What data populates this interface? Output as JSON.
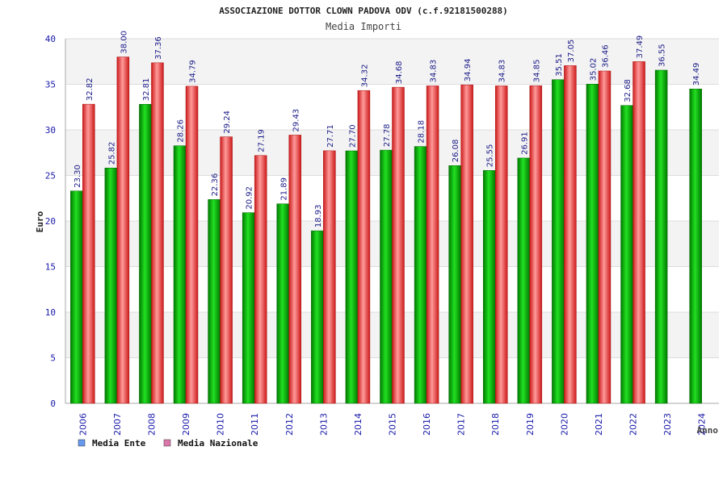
{
  "chart_data": {
    "type": "bar",
    "title": "ASSOCIAZIONE DOTTOR CLOWN PADOVA ODV (c.f.92181500288)",
    "subtitle": "Media Importi",
    "xlabel": "Anno",
    "ylabel": "Euro",
    "ylim": [
      0,
      40
    ],
    "ytick_step": 5,
    "grid": true,
    "legend_position": "bottom-left",
    "categories": [
      "2006",
      "2007",
      "2008",
      "2009",
      "2010",
      "2011",
      "2012",
      "2013",
      "2014",
      "2015",
      "2016",
      "2017",
      "2018",
      "2019",
      "2020",
      "2021",
      "2022",
      "2023",
      "2024"
    ],
    "series": [
      {
        "name": "Media Ente",
        "color": "#00aa00",
        "legend_color": "#6699ee",
        "values": [
          23.3,
          25.82,
          32.81,
          28.26,
          22.36,
          20.92,
          21.89,
          18.93,
          27.7,
          27.78,
          28.18,
          26.08,
          25.55,
          26.91,
          35.51,
          35.02,
          32.68,
          36.55,
          34.49
        ],
        "labels": [
          "23.30",
          "25.82",
          "32.81",
          "28.26",
          "22.36",
          "20.92",
          "21.89",
          "18.93",
          "27.70",
          "27.78",
          "28.18",
          "26.08",
          "25.55",
          "26.91",
          "35.51",
          "35.02",
          "32.68",
          "36.55",
          "34.49"
        ]
      },
      {
        "name": "Media Nazionale",
        "color": "#ee2222",
        "legend_color": "#dd77aa",
        "values": [
          32.82,
          38.0,
          37.36,
          34.79,
          29.24,
          27.19,
          29.43,
          27.71,
          34.32,
          34.68,
          34.83,
          34.94,
          34.83,
          34.85,
          37.05,
          36.46,
          37.49,
          null,
          null
        ],
        "labels": [
          "32.82",
          "38.00",
          "37.36",
          "34.79",
          "29.24",
          "27.19",
          "29.43",
          "27.71",
          "34.32",
          "34.68",
          "34.83",
          "34.94",
          "34.83",
          "34.85",
          "37.05",
          "36.46",
          "37.49",
          null,
          null
        ]
      }
    ]
  }
}
